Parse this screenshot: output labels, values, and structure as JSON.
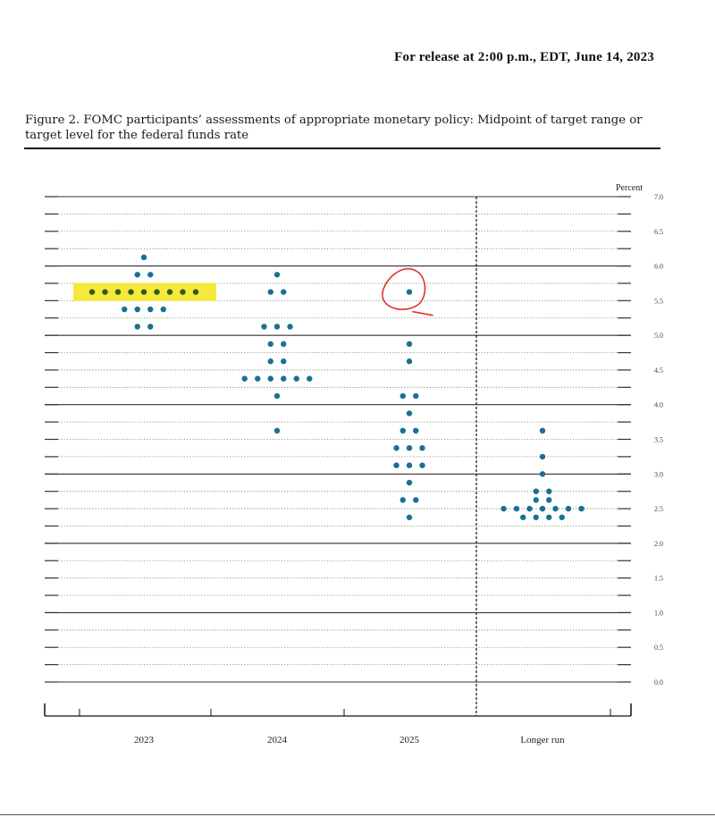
{
  "header": {
    "release": "For release at 2:00 p.m., EDT, June 14, 2023"
  },
  "figure": {
    "title": "Figure 2.  FOMC participants’ assessments of appropriate monetary policy: Midpoint of target range or target level for the federal funds rate"
  },
  "colors": {
    "dot": "#1a6f96",
    "highlight": "#f5ea3a",
    "highlight_dot": "#2f5a1c",
    "annotation": "#e0352b"
  },
  "annotations": {
    "highlight": "yellow highlight over the 2023 row of dots at 5.625",
    "circle": "red hand-drawn circle around the 2025 dot at 5.625"
  },
  "chart_data": {
    "type": "scatter",
    "subtype": "dot plot",
    "unit_label": "Percent",
    "categories": [
      "2023",
      "2024",
      "2025",
      "Longer run"
    ],
    "ylim": [
      0,
      7
    ],
    "y_ticks": [
      "0.0",
      "0.5",
      "1.0",
      "1.5",
      "2.0",
      "2.5",
      "3.0",
      "3.5",
      "4.0",
      "4.5",
      "5.0",
      "5.5",
      "6.0",
      "6.5",
      "7.0"
    ],
    "grid": true,
    "series": [
      {
        "category": "2023",
        "points": [
          {
            "y": 6.125,
            "count": 1
          },
          {
            "y": 5.875,
            "count": 2
          },
          {
            "y": 5.625,
            "count": 9
          },
          {
            "y": 5.375,
            "count": 4
          },
          {
            "y": 5.125,
            "count": 2
          }
        ]
      },
      {
        "category": "2024",
        "points": [
          {
            "y": 5.875,
            "count": 1
          },
          {
            "y": 5.625,
            "count": 2
          },
          {
            "y": 5.125,
            "count": 3
          },
          {
            "y": 4.875,
            "count": 2
          },
          {
            "y": 4.625,
            "count": 2
          },
          {
            "y": 4.375,
            "count": 6
          },
          {
            "y": 4.125,
            "count": 1
          },
          {
            "y": 3.625,
            "count": 1
          }
        ]
      },
      {
        "category": "2025",
        "points": [
          {
            "y": 5.625,
            "count": 1
          },
          {
            "y": 4.875,
            "count": 1
          },
          {
            "y": 4.625,
            "count": 1
          },
          {
            "y": 4.125,
            "count": 2
          },
          {
            "y": 3.875,
            "count": 1
          },
          {
            "y": 3.625,
            "count": 2
          },
          {
            "y": 3.375,
            "count": 3
          },
          {
            "y": 3.125,
            "count": 3
          },
          {
            "y": 2.875,
            "count": 1
          },
          {
            "y": 2.625,
            "count": 2
          },
          {
            "y": 2.375,
            "count": 1
          }
        ]
      },
      {
        "category": "Longer run",
        "points": [
          {
            "y": 3.625,
            "count": 1
          },
          {
            "y": 3.25,
            "count": 1
          },
          {
            "y": 3.0,
            "count": 1
          },
          {
            "y": 2.75,
            "count": 2
          },
          {
            "y": 2.625,
            "count": 2
          },
          {
            "y": 2.5,
            "count": 7
          },
          {
            "y": 2.375,
            "count": 4
          }
        ]
      }
    ]
  }
}
